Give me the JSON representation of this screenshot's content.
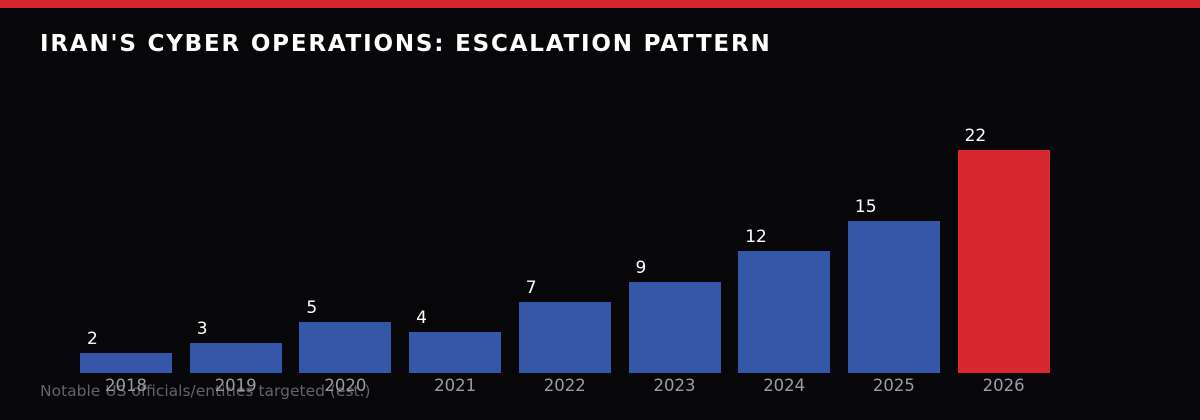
{
  "header": {
    "title": "IRAN'S CYBER OPERATIONS: ESCALATION PATTERN"
  },
  "footer": {
    "caption": "Notable US officials/entities targeted (est.)"
  },
  "colors": {
    "background": "#07070a",
    "top_stripe": "#d5252d",
    "bar_blue": "#3556a7",
    "bar_red": "#d7282f",
    "title_text": "#ffffff",
    "value_label": "#ffffff",
    "year_label": "#9b9ba6",
    "caption_text": "#62626c"
  },
  "chart_data": {
    "type": "bar",
    "title": "IRAN'S CYBER OPERATIONS: ESCALATION PATTERN",
    "categories": [
      "2018",
      "2019",
      "2020",
      "2021",
      "2022",
      "2023",
      "2024",
      "2025",
      "2026"
    ],
    "values": [
      2,
      3,
      5,
      4,
      7,
      9,
      12,
      15,
      22
    ],
    "bar_colors": [
      "#3556a7",
      "#3556a7",
      "#3556a7",
      "#3556a7",
      "#3556a7",
      "#3556a7",
      "#3556a7",
      "#3556a7",
      "#d7282f"
    ],
    "highlight_category": "2026",
    "value_labels_shown": true,
    "annotation": "Notable US officials/entities targeted (est.)",
    "xlabel": "",
    "ylabel": "",
    "ylim": [
      0,
      24
    ],
    "grid": false,
    "legend": "none"
  }
}
